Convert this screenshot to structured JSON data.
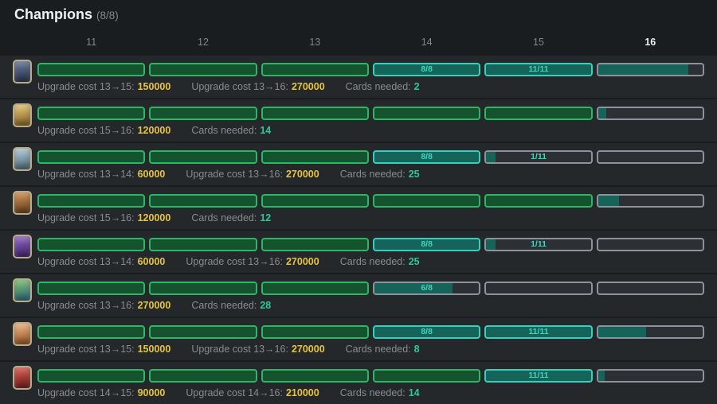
{
  "header": {
    "title": "Champions",
    "count": "(8/8)"
  },
  "columns": [
    "11",
    "12",
    "13",
    "14",
    "15",
    "16"
  ],
  "active_column": "16",
  "colors": {
    "bg": "#1a1d20",
    "panel": "#25282b",
    "title": "#eef1f2",
    "muted": "#80868c",
    "label": "#868c92",
    "green_border": "#2db664",
    "green_fill": "#15522e",
    "teal_border": "#38d0bd",
    "teal_fill": "#156359",
    "teal_text": "#43d4be",
    "gray_border": "#8d939c",
    "bar_bg": "#2c3035",
    "gold": "#e7c43e",
    "needed": "#2fc795"
  },
  "rows": [
    {
      "icon_colors": [
        "#5d6f92",
        "#2d3a55"
      ],
      "bars": [
        {
          "state": "green"
        },
        {
          "state": "green"
        },
        {
          "state": "green"
        },
        {
          "state": "teal",
          "label": "8/8"
        },
        {
          "state": "teal",
          "label": "11/11"
        },
        {
          "state": "progress",
          "fill": 86
        }
      ],
      "stats": [
        {
          "label": "Upgrade cost 13→15:",
          "value": "150000",
          "type": "gold"
        },
        {
          "label": "Upgrade cost 13→16:",
          "value": "270000",
          "type": "gold"
        },
        {
          "label": "Cards needed:",
          "value": "2",
          "type": "teal"
        }
      ]
    },
    {
      "icon_colors": [
        "#e3c06a",
        "#8a6a2c"
      ],
      "bars": [
        {
          "state": "green"
        },
        {
          "state": "green"
        },
        {
          "state": "green"
        },
        {
          "state": "green"
        },
        {
          "state": "green"
        },
        {
          "state": "progress",
          "fill": 8
        }
      ],
      "stats": [
        {
          "label": "Upgrade cost 15→16:",
          "value": "120000",
          "type": "gold"
        },
        {
          "label": "Cards needed:",
          "value": "14",
          "type": "teal"
        }
      ]
    },
    {
      "icon_colors": [
        "#aac6d6",
        "#56707f"
      ],
      "bars": [
        {
          "state": "green"
        },
        {
          "state": "green"
        },
        {
          "state": "green"
        },
        {
          "state": "teal",
          "label": "8/8"
        },
        {
          "state": "progress",
          "fill": 9,
          "label": "1/11"
        },
        {
          "state": "progress",
          "fill": 0
        }
      ],
      "stats": [
        {
          "label": "Upgrade cost 13→14:",
          "value": "60000",
          "type": "gold"
        },
        {
          "label": "Upgrade cost 13→16:",
          "value": "270000",
          "type": "gold"
        },
        {
          "label": "Cards needed:",
          "value": "25",
          "type": "teal"
        }
      ]
    },
    {
      "icon_colors": [
        "#cd8a4a",
        "#6f4722"
      ],
      "bars": [
        {
          "state": "green"
        },
        {
          "state": "green"
        },
        {
          "state": "green"
        },
        {
          "state": "green"
        },
        {
          "state": "green"
        },
        {
          "state": "progress",
          "fill": 20
        }
      ],
      "stats": [
        {
          "label": "Upgrade cost 15→16:",
          "value": "120000",
          "type": "gold"
        },
        {
          "label": "Cards needed:",
          "value": "12",
          "type": "teal"
        }
      ]
    },
    {
      "icon_colors": [
        "#8a5ec2",
        "#45286e"
      ],
      "bars": [
        {
          "state": "green"
        },
        {
          "state": "green"
        },
        {
          "state": "green"
        },
        {
          "state": "teal",
          "label": "8/8"
        },
        {
          "state": "progress",
          "fill": 9,
          "label": "1/11"
        },
        {
          "state": "progress",
          "fill": 0
        }
      ],
      "stats": [
        {
          "label": "Upgrade cost 13→14:",
          "value": "60000",
          "type": "gold"
        },
        {
          "label": "Upgrade cost 13→16:",
          "value": "270000",
          "type": "gold"
        },
        {
          "label": "Cards needed:",
          "value": "25",
          "type": "teal"
        }
      ]
    },
    {
      "icon_colors": [
        "#7ab85e",
        "#2e6f8e"
      ],
      "bars": [
        {
          "state": "green"
        },
        {
          "state": "green"
        },
        {
          "state": "green"
        },
        {
          "state": "progress",
          "fill": 75,
          "label": "6/8"
        },
        {
          "state": "progress",
          "fill": 0
        },
        {
          "state": "progress",
          "fill": 0
        }
      ],
      "stats": [
        {
          "label": "Upgrade cost 13→16:",
          "value": "270000",
          "type": "gold"
        },
        {
          "label": "Cards needed:",
          "value": "28",
          "type": "teal"
        }
      ]
    },
    {
      "icon_colors": [
        "#e8b07a",
        "#a05a28"
      ],
      "bars": [
        {
          "state": "green"
        },
        {
          "state": "green"
        },
        {
          "state": "green"
        },
        {
          "state": "teal",
          "label": "8/8"
        },
        {
          "state": "teal",
          "label": "11/11"
        },
        {
          "state": "progress",
          "fill": 46
        }
      ],
      "stats": [
        {
          "label": "Upgrade cost 13→15:",
          "value": "150000",
          "type": "gold"
        },
        {
          "label": "Upgrade cost 13→16:",
          "value": "270000",
          "type": "gold"
        },
        {
          "label": "Cards needed:",
          "value": "8",
          "type": "teal"
        }
      ]
    },
    {
      "icon_colors": [
        "#d05548",
        "#7a1f1f"
      ],
      "bars": [
        {
          "state": "green"
        },
        {
          "state": "green"
        },
        {
          "state": "green"
        },
        {
          "state": "green"
        },
        {
          "state": "teal",
          "label": "11/11"
        },
        {
          "state": "progress",
          "fill": 6
        }
      ],
      "stats": [
        {
          "label": "Upgrade cost 14→15:",
          "value": "90000",
          "type": "gold"
        },
        {
          "label": "Upgrade cost 14→16:",
          "value": "210000",
          "type": "gold"
        },
        {
          "label": "Cards needed:",
          "value": "14",
          "type": "teal"
        }
      ]
    }
  ]
}
